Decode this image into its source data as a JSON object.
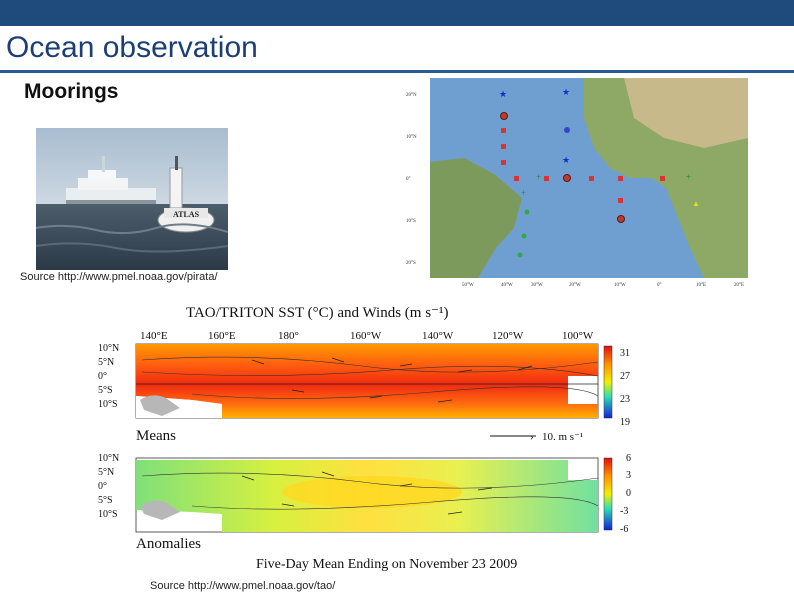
{
  "slide": {
    "title": "Ocean observation",
    "subtitle": "Moorings"
  },
  "photo": {
    "buoy_label": "ATLAS",
    "caption": "Source http://www.pmel.noaa.gov/pirata/"
  },
  "map": {
    "lat_labels": [
      "20°N",
      "10°N",
      "0°",
      "10°S",
      "20°S"
    ],
    "lon_labels": [
      "50°W",
      "40°W",
      "30°W",
      "20°W",
      "10°W",
      "0°",
      "10°E",
      "20°E"
    ]
  },
  "sst_figure": {
    "title": "TAO/TRITON SST (°C) and Winds (m s⁻¹)",
    "lon_labels": [
      "140°E",
      "160°E",
      "180°",
      "160°W",
      "140°W",
      "120°W",
      "100°W"
    ],
    "lat_labels": [
      "10°N",
      "5°N",
      "0°",
      "5°S",
      "10°S"
    ],
    "means_label": "Means",
    "anomalies_label": "Anomalies",
    "wind_scale_label": "10. m s⁻¹",
    "means_colorbar": [
      "31",
      "27",
      "23",
      "19"
    ],
    "anomaly_colorbar": [
      "6",
      "3",
      "0",
      "-3",
      "-6"
    ],
    "footer": "Five-Day Mean Ending on November 23 2009",
    "caption": "Source http://www.pmel.noaa.gov/tao/"
  }
}
